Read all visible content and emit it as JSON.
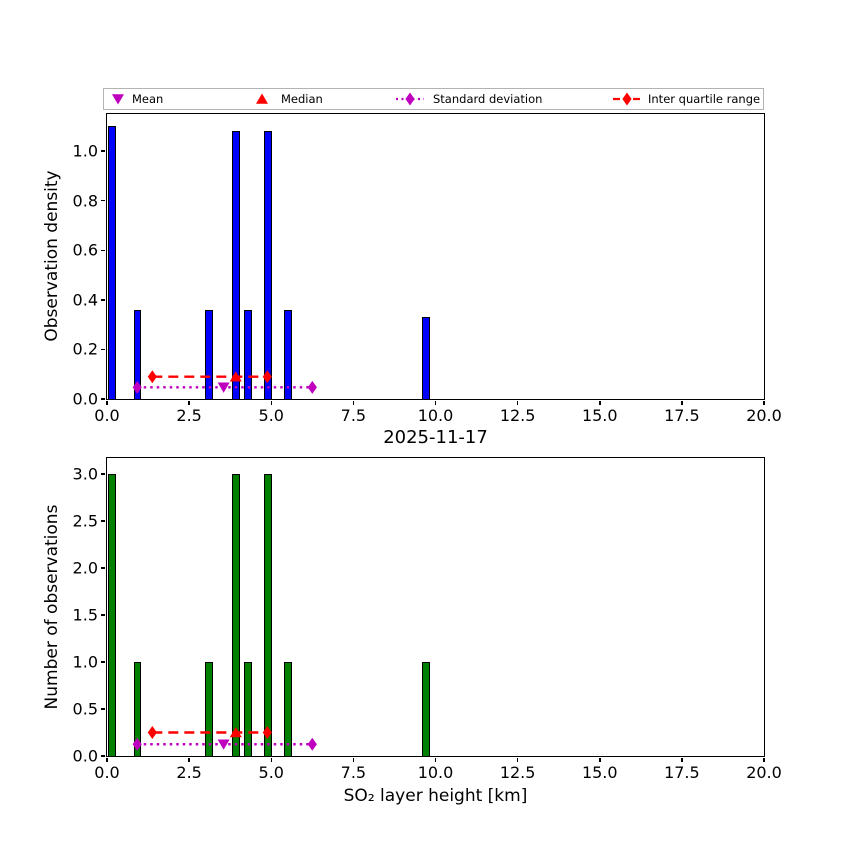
{
  "title": "2025-11-17",
  "xlabel": "SO₂ layer height [km]",
  "colors": {
    "mean_std": "#BF00BF",
    "median_iqr": "#FF0000",
    "density_bar": "#0000FF",
    "count_bar": "#008000",
    "bar_edge": "#000000"
  },
  "legend": {
    "items": [
      {
        "label": "Mean",
        "marker": "triangle-down",
        "color": "#BF00BF",
        "line": "none"
      },
      {
        "label": "Median",
        "marker": "triangle-up",
        "color": "#FF0000",
        "line": "none"
      },
      {
        "label": "Standard deviation",
        "marker": "diamond",
        "color": "#BF00BF",
        "line": "dotted"
      },
      {
        "label": "Inter quartile range",
        "marker": "diamond",
        "color": "#FF0000",
        "line": "dashed"
      }
    ]
  },
  "chart_data": [
    {
      "type": "bar",
      "ylabel": "Observation density",
      "x": [
        0.15,
        0.93,
        3.1,
        3.92,
        4.3,
        4.89,
        5.5,
        9.71
      ],
      "values": [
        1.1,
        0.36,
        0.36,
        1.08,
        0.36,
        1.08,
        0.36,
        0.33
      ],
      "bar_width": 0.24,
      "bar_color": "#0000FF",
      "xlim": [
        0,
        20
      ],
      "ylim": [
        0,
        1.15
      ],
      "xticks": [
        0,
        2.5,
        5,
        7.5,
        10,
        12.5,
        15,
        17.5,
        20
      ],
      "yticks": [
        0,
        0.2,
        0.4,
        0.6,
        0.8,
        1.0
      ],
      "grid": false,
      "stats": {
        "mean": 3.55,
        "std_lo": 0.92,
        "std_hi": 6.25,
        "std_y": 0.047,
        "median": 3.92,
        "q1": 1.38,
        "q3": 4.88,
        "iqr_y": 0.09
      }
    },
    {
      "type": "bar",
      "ylabel": "Number of observations",
      "x": [
        0.15,
        0.93,
        3.1,
        3.92,
        4.3,
        4.89,
        5.5,
        9.71
      ],
      "values": [
        3,
        1,
        1,
        3,
        1,
        3,
        1,
        1
      ],
      "bar_width": 0.24,
      "bar_color": "#008000",
      "xlim": [
        0,
        20
      ],
      "ylim": [
        0,
        3.17
      ],
      "xticks": [
        0,
        2.5,
        5,
        7.5,
        10,
        12.5,
        15,
        17.5,
        20
      ],
      "yticks": [
        0,
        0.5,
        1.0,
        1.5,
        2.0,
        2.5,
        3.0
      ],
      "grid": false,
      "stats": {
        "mean": 3.55,
        "std_lo": 0.92,
        "std_hi": 6.25,
        "std_y": 0.125,
        "median": 3.92,
        "q1": 1.38,
        "q3": 4.88,
        "iqr_y": 0.25
      }
    }
  ]
}
